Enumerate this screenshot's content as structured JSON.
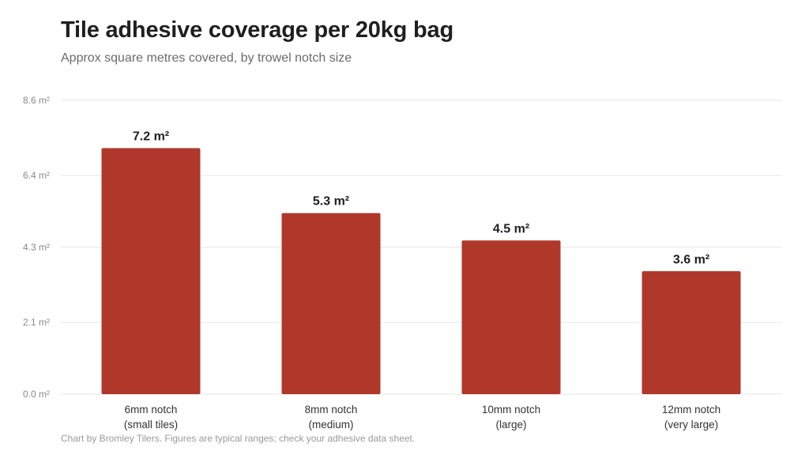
{
  "title": "Tile adhesive coverage per 20kg bag",
  "subtitle": "Approx square metres covered, by trowel notch size",
  "footer": "Chart by Bromley Tilers. Figures are typical ranges; check your adhesive data sheet.",
  "colors": {
    "bar": "#b0382b",
    "grid": "#e6e6e6",
    "text": "#222222"
  },
  "chart_data": {
    "type": "bar",
    "title": "Tile adhesive coverage per 20kg bag",
    "subtitle": "Approx square metres covered, by trowel notch size",
    "xlabel": "",
    "ylabel": "",
    "categories": [
      [
        "6mm notch",
        "(small tiles)"
      ],
      [
        "8mm notch",
        "(medium)"
      ],
      [
        "10mm notch",
        "(large)"
      ],
      [
        "12mm notch",
        "(very large)"
      ]
    ],
    "values": [
      7.2,
      5.3,
      4.5,
      3.6
    ],
    "value_labels": [
      "7.2 m²",
      "5.3 m²",
      "4.5 m²",
      "3.6 m²"
    ],
    "y_ticks": [
      0.0,
      2.1,
      4.3,
      6.4,
      8.6
    ],
    "y_tick_labels": [
      "0.0 m²",
      "2.1 m²",
      "4.3 m²",
      "6.4 m²",
      "8.6 m²"
    ],
    "ylim": [
      0,
      8.6
    ],
    "grid": true,
    "legend": "none"
  }
}
